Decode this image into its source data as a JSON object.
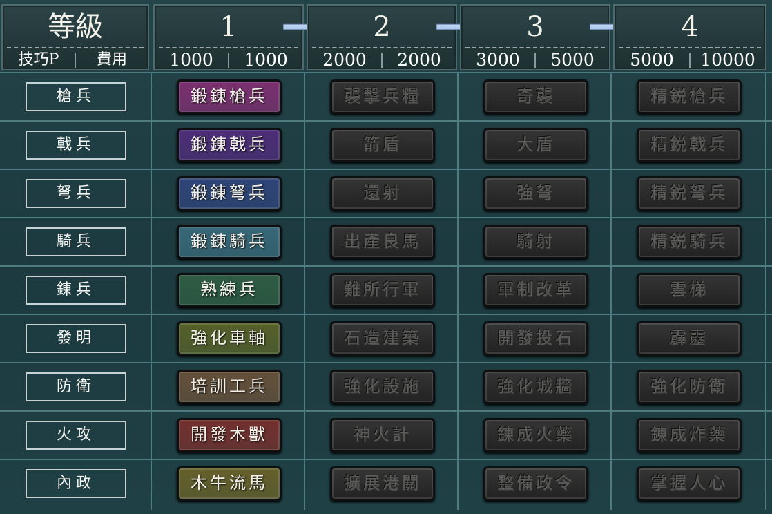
{
  "header": {
    "level_title": "等級",
    "tech_points_label": "技巧P",
    "cost_label": "費用",
    "levels": [
      {
        "level": "1",
        "tech_points": "1000",
        "cost": "1000"
      },
      {
        "level": "2",
        "tech_points": "2000",
        "cost": "2000"
      },
      {
        "level": "3",
        "tech_points": "3000",
        "cost": "5000"
      },
      {
        "level": "4",
        "tech_points": "5000",
        "cost": "10000"
      }
    ],
    "arrow_color": "#8fb4e6"
  },
  "colors": {
    "grid_line": "#4f7c80",
    "background": "#1d3a3e",
    "locked": "#2c2c2c"
  },
  "rows": [
    {
      "category": "槍兵",
      "techs": [
        "鍛錬槍兵",
        "襲擊兵糧",
        "奇襲",
        "精鋭槍兵"
      ],
      "color": "#7c2f70"
    },
    {
      "category": "戟兵",
      "techs": [
        "鍛錬戟兵",
        "箭盾",
        "大盾",
        "精鋭戟兵"
      ],
      "color": "#4d2d78"
    },
    {
      "category": "弩兵",
      "techs": [
        "鍛錬弩兵",
        "還射",
        "強弩",
        "精鋭弩兵"
      ],
      "color": "#2f4478"
    },
    {
      "category": "騎兵",
      "techs": [
        "鍛錬騎兵",
        "出產良馬",
        "騎射",
        "精鋭騎兵"
      ],
      "color": "#386878"
    },
    {
      "category": "錬兵",
      "techs": [
        "熟練兵",
        "難所行軍",
        "軍制改革",
        "雲梯"
      ],
      "color": "#2e5c42"
    },
    {
      "category": "發明",
      "techs": [
        "強化車軸",
        "石造建築",
        "開發投石",
        "霹靂"
      ],
      "color": "#55602a"
    },
    {
      "category": "防衛",
      "techs": [
        "培訓工兵",
        "強化設施",
        "強化城牆",
        "強化防衛"
      ],
      "color": "#65503a"
    },
    {
      "category": "火攻",
      "techs": [
        "開發木獸",
        "神火計",
        "錬成火藥",
        "錬成炸藥"
      ],
      "color": "#74302e"
    },
    {
      "category": "內政",
      "techs": [
        "木牛流馬",
        "擴展港關",
        "整備政令",
        "掌握人心"
      ],
      "color": "#66602a"
    }
  ]
}
